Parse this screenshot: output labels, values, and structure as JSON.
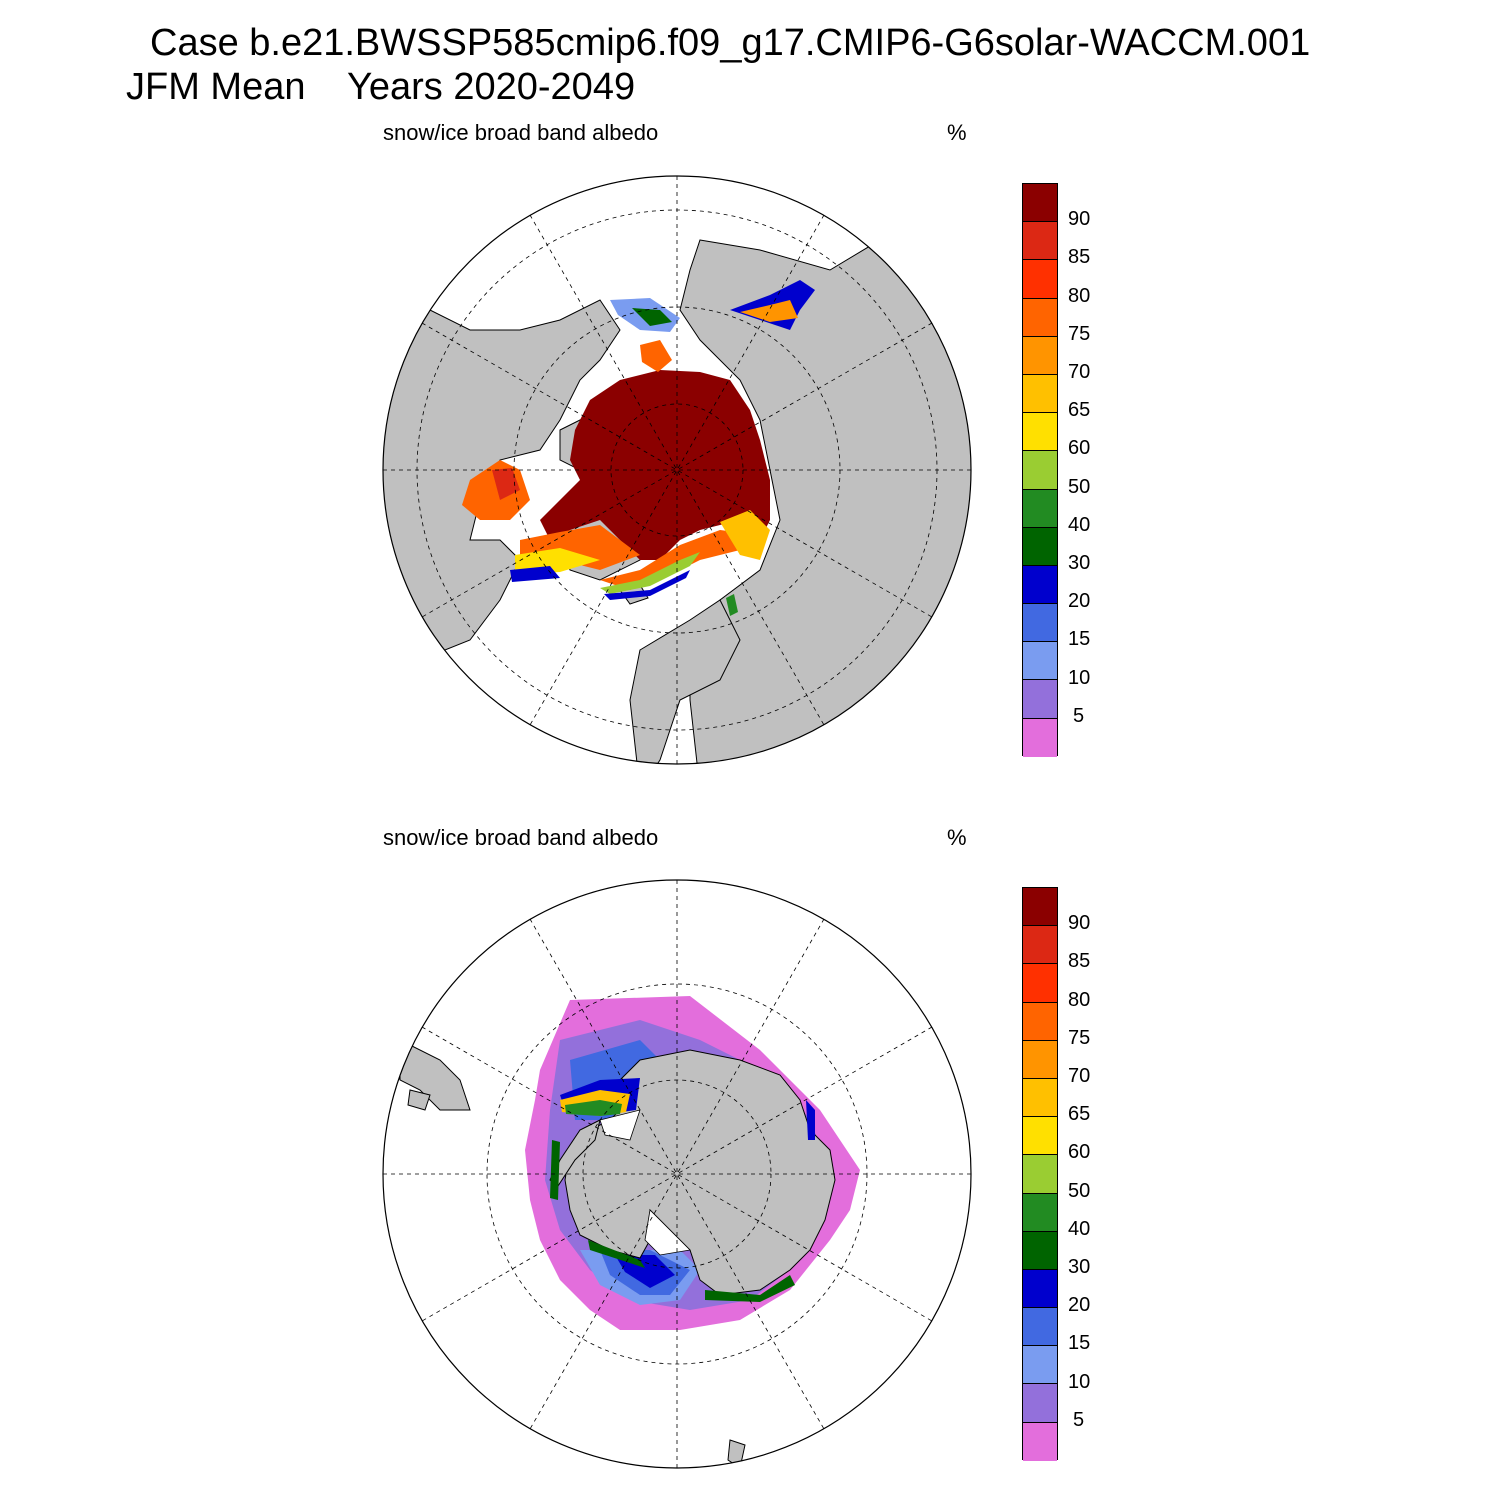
{
  "header": {
    "title_line1": "Case b.e21.BWSSP585cmip6.f09_g17.CMIP6-G6solar-WACCM.001",
    "title_line2": "JFM Mean    Years 2020-2049"
  },
  "panels": [
    {
      "id": "north",
      "hemisphere": "Northern Hemisphere",
      "variable_label": "snow/ice broad band albedo",
      "units": "%"
    },
    {
      "id": "south",
      "hemisphere": "Southern Hemisphere",
      "variable_label": "snow/ice broad band albedo",
      "units": "%"
    }
  ],
  "colorbar": {
    "levels": [
      "5",
      "10",
      "15",
      "20",
      "30",
      "40",
      "50",
      "60",
      "65",
      "70",
      "75",
      "80",
      "85",
      "90"
    ],
    "colors": [
      "#e36edc",
      "#9370db",
      "#7a9cf0",
      "#4169e1",
      "#0000cd",
      "#006400",
      "#228b22",
      "#9acd32",
      "#ffe000",
      "#ffc000",
      "#ff9400",
      "#ff6400",
      "#ff3000",
      "#dc2814",
      "#8b0000"
    ]
  },
  "map_style": {
    "land_color": "#c0c0c0",
    "ocean_color": "#ffffff",
    "grid_style": "dashed"
  }
}
